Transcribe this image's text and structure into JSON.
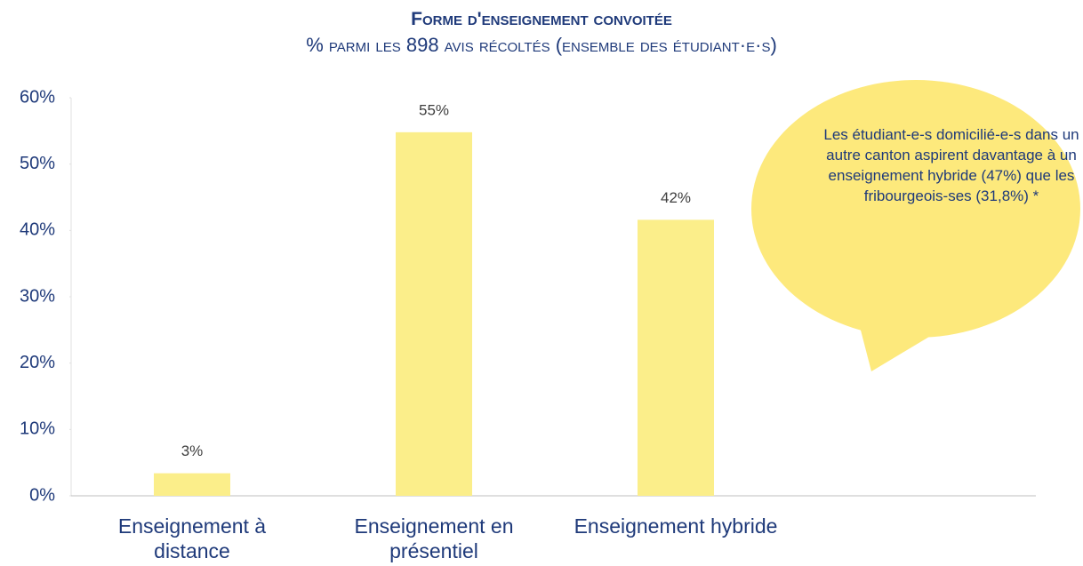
{
  "chart_data": {
    "type": "bar",
    "title": "Forme d'enseignement convoitée",
    "subtitle": "% parmi les 898 avis récoltés (ensemble des étudiant·e·s)",
    "categories": [
      "Enseignement à distance",
      "Enseignement en présentiel",
      "Enseignement hybride"
    ],
    "values": [
      3.4,
      54.8,
      41.6
    ],
    "value_labels": [
      "3%",
      "55%",
      "42%"
    ],
    "color": "#fbee8a",
    "ylim": [
      0,
      60
    ],
    "yticks": [
      {
        "value": 0,
        "label": "0%"
      },
      {
        "value": 10,
        "label": "10%"
      },
      {
        "value": 20,
        "label": "20%"
      },
      {
        "value": 30,
        "label": "30%"
      },
      {
        "value": 40,
        "label": "40%"
      },
      {
        "value": 50,
        "label": "50%"
      },
      {
        "value": 60,
        "label": "60%"
      }
    ],
    "annotation": "Les étudiant-e-s domicilié-e-s dans un autre canton aspirent davantage à un enseignement hybride (47%) que les fribourgeois-ses (31,8%) *"
  }
}
